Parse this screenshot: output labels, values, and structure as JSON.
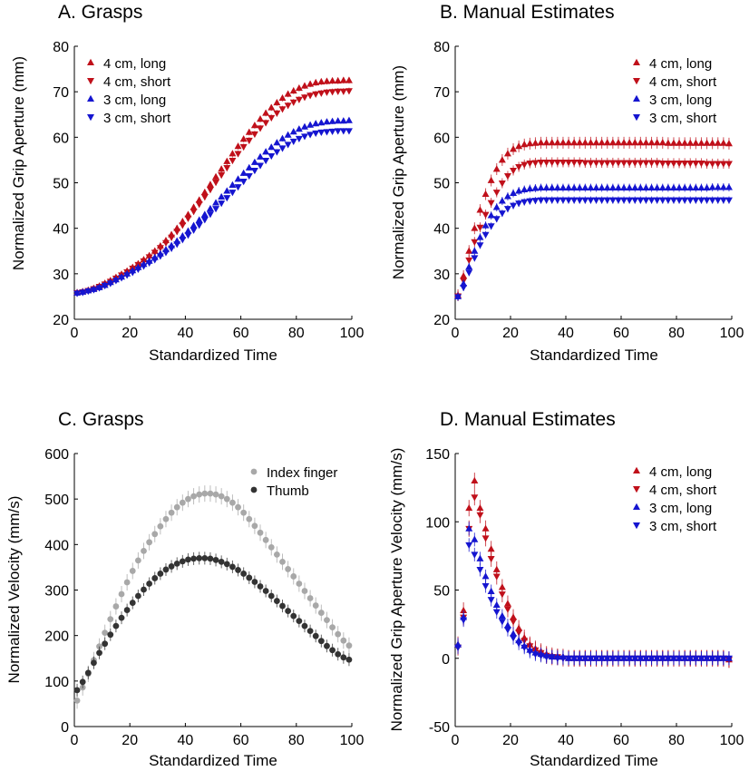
{
  "colors": {
    "red": "#c0101a",
    "blue": "#1515d0",
    "light_gray": "#a8a8a8",
    "dark_gray": "#333333"
  },
  "chart_data": [
    {
      "panel": "A",
      "type": "scatter",
      "title": "A. Grasps",
      "xlabel": "Standardized Time",
      "ylabel": "Normalized Grip Aperture (mm)",
      "xlim": [
        0,
        100
      ],
      "ylim": [
        20,
        80
      ],
      "xticks": [
        0,
        20,
        40,
        60,
        80,
        100
      ],
      "yticks": [
        20,
        30,
        40,
        50,
        60,
        70,
        80
      ],
      "legend_position": "top-left",
      "x": [
        1,
        3,
        5,
        7,
        9,
        11,
        13,
        15,
        17,
        19,
        21,
        23,
        25,
        27,
        29,
        31,
        33,
        35,
        37,
        39,
        41,
        43,
        45,
        47,
        49,
        51,
        53,
        55,
        57,
        59,
        61,
        63,
        65,
        67,
        69,
        71,
        73,
        75,
        77,
        79,
        81,
        83,
        85,
        87,
        89,
        91,
        93,
        95,
        97,
        99
      ],
      "series": [
        {
          "name": "4 cm, long",
          "color": "red",
          "marker": "triangle-up",
          "values": [
            25.9,
            26.1,
            26.4,
            26.8,
            27.3,
            27.9,
            28.5,
            29.2,
            29.9,
            30.6,
            31.4,
            32.2,
            33.1,
            34.0,
            35.0,
            36.1,
            37.3,
            38.6,
            40.0,
            41.5,
            43.0,
            44.6,
            46.2,
            47.9,
            49.6,
            51.3,
            53.0,
            54.7,
            56.4,
            58.0,
            59.6,
            61.1,
            62.6,
            64.0,
            65.3,
            66.5,
            67.6,
            68.6,
            69.5,
            70.2,
            70.8,
            71.3,
            71.7,
            72.0,
            72.2,
            72.3,
            72.4,
            72.4,
            72.5,
            72.5
          ],
          "errors": 0.7
        },
        {
          "name": "4 cm, short",
          "color": "red",
          "marker": "triangle-down",
          "values": [
            25.8,
            26.0,
            26.3,
            26.7,
            27.2,
            27.7,
            28.3,
            29.0,
            29.7,
            30.4,
            31.2,
            32.0,
            32.8,
            33.7,
            34.7,
            35.7,
            36.8,
            38.0,
            39.3,
            40.7,
            42.2,
            43.7,
            45.3,
            46.9,
            48.5,
            50.1,
            51.7,
            53.3,
            54.9,
            56.4,
            57.9,
            59.3,
            60.7,
            62.0,
            63.2,
            64.3,
            65.3,
            66.2,
            67.0,
            67.7,
            68.3,
            68.8,
            69.2,
            69.5,
            69.7,
            69.9,
            70.0,
            70.1,
            70.1,
            70.2
          ],
          "errors": 0.7
        },
        {
          "name": "3 cm, long",
          "color": "blue",
          "marker": "triangle-up",
          "values": [
            25.8,
            26.0,
            26.3,
            26.6,
            27.0,
            27.5,
            28.1,
            28.7,
            29.3,
            30.0,
            30.7,
            31.4,
            32.1,
            32.8,
            33.6,
            34.4,
            35.3,
            36.2,
            37.2,
            38.3,
            39.4,
            40.6,
            41.8,
            43.0,
            44.3,
            45.6,
            46.9,
            48.2,
            49.5,
            50.8,
            52.1,
            53.3,
            54.5,
            55.7,
            56.8,
            57.8,
            58.8,
            59.7,
            60.5,
            61.2,
            61.8,
            62.3,
            62.7,
            63.0,
            63.2,
            63.4,
            63.5,
            63.6,
            63.6,
            63.7
          ],
          "errors": 0.6
        },
        {
          "name": "3 cm, short",
          "color": "blue",
          "marker": "triangle-down",
          "values": [
            25.7,
            25.9,
            26.2,
            26.5,
            26.9,
            27.4,
            27.9,
            28.5,
            29.1,
            29.7,
            30.3,
            31.0,
            31.7,
            32.4,
            33.1,
            33.9,
            34.7,
            35.6,
            36.5,
            37.5,
            38.5,
            39.6,
            40.7,
            41.9,
            43.1,
            44.3,
            45.5,
            46.7,
            47.9,
            49.1,
            50.3,
            51.5,
            52.7,
            53.8,
            54.9,
            55.9,
            56.8,
            57.6,
            58.4,
            59.1,
            59.7,
            60.2,
            60.6,
            60.9,
            61.1,
            61.2,
            61.3,
            61.4,
            61.4,
            61.4
          ],
          "errors": 0.6
        }
      ]
    },
    {
      "panel": "B",
      "type": "scatter",
      "title": "B. Manual Estimates",
      "xlabel": "Standardized Time",
      "ylabel": "Normalized Grip Aperture (mm)",
      "xlim": [
        0,
        100
      ],
      "ylim": [
        20,
        80
      ],
      "xticks": [
        0,
        20,
        40,
        60,
        80,
        100
      ],
      "yticks": [
        20,
        30,
        40,
        50,
        60,
        70,
        80
      ],
      "legend_position": "top-right",
      "x": [
        1,
        3,
        5,
        7,
        9,
        11,
        13,
        15,
        17,
        19,
        21,
        23,
        25,
        27,
        29,
        31,
        33,
        35,
        37,
        39,
        41,
        43,
        45,
        47,
        49,
        51,
        53,
        55,
        57,
        59,
        61,
        63,
        65,
        67,
        69,
        71,
        73,
        75,
        77,
        79,
        81,
        83,
        85,
        87,
        89,
        91,
        93,
        95,
        97,
        99
      ],
      "series": [
        {
          "name": "4 cm, long",
          "color": "red",
          "marker": "triangle-up",
          "values": [
            25.3,
            29.5,
            35.0,
            40.0,
            44.0,
            47.5,
            50.5,
            53.0,
            55.0,
            56.4,
            57.4,
            58.0,
            58.4,
            58.6,
            58.7,
            58.8,
            58.8,
            58.8,
            58.8,
            58.8,
            58.8,
            58.8,
            58.8,
            58.8,
            58.8,
            58.8,
            58.8,
            58.8,
            58.8,
            58.8,
            58.8,
            58.8,
            58.8,
            58.8,
            58.8,
            58.8,
            58.8,
            58.8,
            58.7,
            58.7,
            58.7,
            58.7,
            58.7,
            58.7,
            58.7,
            58.7,
            58.7,
            58.7,
            58.7,
            58.6
          ],
          "errors": 1.3
        },
        {
          "name": "4 cm, short",
          "color": "red",
          "marker": "triangle-down",
          "values": [
            25.1,
            28.5,
            33.0,
            37.0,
            40.2,
            43.0,
            45.6,
            47.9,
            49.9,
            51.5,
            52.7,
            53.5,
            54.0,
            54.3,
            54.4,
            54.5,
            54.5,
            54.5,
            54.5,
            54.5,
            54.5,
            54.5,
            54.5,
            54.4,
            54.4,
            54.4,
            54.4,
            54.4,
            54.4,
            54.4,
            54.4,
            54.4,
            54.4,
            54.4,
            54.4,
            54.4,
            54.4,
            54.3,
            54.3,
            54.3,
            54.3,
            54.3,
            54.3,
            54.3,
            54.3,
            54.2,
            54.2,
            54.2,
            54.2,
            54.2
          ],
          "errors": 1.1
        },
        {
          "name": "3 cm, long",
          "color": "blue",
          "marker": "triangle-up",
          "values": [
            25.0,
            27.8,
            31.5,
            35.0,
            38.0,
            40.6,
            42.8,
            44.6,
            46.0,
            47.0,
            47.7,
            48.2,
            48.5,
            48.7,
            48.8,
            48.9,
            48.9,
            48.9,
            48.9,
            48.9,
            48.9,
            48.9,
            48.9,
            48.9,
            48.9,
            48.9,
            48.9,
            48.9,
            48.9,
            48.9,
            48.9,
            48.9,
            48.9,
            48.9,
            48.9,
            48.9,
            48.9,
            48.9,
            48.9,
            48.9,
            48.9,
            48.9,
            48.9,
            48.9,
            48.9,
            48.9,
            49.0,
            49.0,
            49.0,
            49.0
          ],
          "errors": 0.9
        },
        {
          "name": "3 cm, short",
          "color": "blue",
          "marker": "triangle-down",
          "values": [
            24.9,
            27.0,
            30.3,
            33.5,
            36.3,
            38.6,
            40.5,
            42.1,
            43.3,
            44.3,
            45.0,
            45.5,
            45.8,
            46.0,
            46.1,
            46.2,
            46.2,
            46.2,
            46.2,
            46.2,
            46.2,
            46.2,
            46.2,
            46.2,
            46.2,
            46.2,
            46.2,
            46.2,
            46.2,
            46.2,
            46.2,
            46.2,
            46.2,
            46.2,
            46.2,
            46.2,
            46.2,
            46.2,
            46.2,
            46.2,
            46.2,
            46.2,
            46.2,
            46.2,
            46.2,
            46.2,
            46.2,
            46.2,
            46.2,
            46.2
          ],
          "errors": 0.8
        }
      ]
    },
    {
      "panel": "C",
      "type": "scatter",
      "title": "C. Grasps",
      "xlabel": "Standardized Time",
      "ylabel": "Normalized Velocity (mm/s)",
      "xlim": [
        0,
        100
      ],
      "ylim": [
        0,
        600
      ],
      "xticks": [
        0,
        20,
        40,
        60,
        80,
        100
      ],
      "yticks": [
        0,
        100,
        200,
        300,
        400,
        500,
        600
      ],
      "legend_position": "top-right",
      "x": [
        1,
        3,
        5,
        7,
        9,
        11,
        13,
        15,
        17,
        19,
        21,
        23,
        25,
        27,
        29,
        31,
        33,
        35,
        37,
        39,
        41,
        43,
        45,
        47,
        49,
        51,
        53,
        55,
        57,
        59,
        61,
        63,
        65,
        67,
        69,
        71,
        73,
        75,
        77,
        79,
        81,
        83,
        85,
        87,
        89,
        91,
        93,
        95,
        97,
        99
      ],
      "series": [
        {
          "name": "Index finger",
          "color": "light_gray",
          "marker": "circle",
          "values": [
            57,
            86,
            116,
            146,
            176,
            206,
            236,
            264,
            291,
            317,
            342,
            365,
            386,
            405,
            423,
            440,
            456,
            470,
            482,
            492,
            500,
            506,
            510,
            512,
            512,
            510,
            506,
            500,
            492,
            482,
            470,
            456,
            441,
            426,
            410,
            394,
            378,
            362,
            346,
            330,
            314,
            298,
            282,
            266,
            250,
            234,
            218,
            203,
            189,
            178
          ],
          "errors": 18
        },
        {
          "name": "Thumb",
          "color": "dark_gray",
          "marker": "circle",
          "values": [
            80,
            98,
            118,
            140,
            162,
            182,
            202,
            221,
            239,
            256,
            272,
            287,
            301,
            314,
            326,
            336,
            345,
            352,
            358,
            363,
            367,
            369,
            370,
            370,
            369,
            366,
            362,
            357,
            351,
            344,
            336,
            327,
            318,
            308,
            298,
            287,
            276,
            265,
            254,
            243,
            232,
            221,
            210,
            199,
            188,
            177,
            168,
            159,
            152,
            147
          ],
          "errors": 14
        }
      ]
    },
    {
      "panel": "D",
      "type": "scatter",
      "title": "D. Manual Estimates",
      "xlabel": "Standardized Time",
      "ylabel": "Normalized Grip Aperture Velocity (mm/s)",
      "xlim": [
        0,
        100
      ],
      "ylim": [
        -50,
        150
      ],
      "xticks": [
        0,
        20,
        40,
        60,
        80,
        100
      ],
      "yticks": [
        -50,
        0,
        50,
        100,
        150
      ],
      "legend_position": "top-right",
      "x": [
        1,
        3,
        5,
        7,
        9,
        11,
        13,
        15,
        17,
        19,
        21,
        23,
        25,
        27,
        29,
        31,
        33,
        35,
        37,
        39,
        41,
        43,
        45,
        47,
        49,
        51,
        53,
        55,
        57,
        59,
        61,
        63,
        65,
        67,
        69,
        71,
        73,
        75,
        77,
        79,
        81,
        83,
        85,
        87,
        89,
        91,
        93,
        95,
        97,
        99
      ],
      "series": [
        {
          "name": "4 cm, long",
          "color": "red",
          "marker": "triangle-up",
          "values": [
            10,
            35,
            110,
            130,
            110,
            95,
            80,
            65,
            52,
            40,
            30,
            22,
            15,
            10,
            7,
            5,
            3,
            2,
            1,
            1,
            0,
            0,
            0,
            0,
            0,
            0,
            0,
            0,
            0,
            0,
            0,
            0,
            0,
            0,
            0,
            0,
            0,
            0,
            0,
            0,
            0,
            0,
            0,
            0,
            0,
            0,
            0,
            0,
            0,
            -1
          ],
          "errors": 6
        },
        {
          "name": "4 cm, short",
          "color": "red",
          "marker": "triangle-down",
          "values": [
            8,
            30,
            95,
            118,
            105,
            88,
            73,
            60,
            47,
            36,
            27,
            19,
            13,
            9,
            6,
            4,
            2,
            1,
            1,
            0,
            0,
            0,
            0,
            0,
            0,
            0,
            0,
            0,
            0,
            0,
            0,
            0,
            0,
            0,
            0,
            0,
            0,
            0,
            0,
            0,
            0,
            0,
            0,
            0,
            0,
            0,
            0,
            0,
            0,
            -1
          ],
          "errors": 6
        },
        {
          "name": "3 cm, long",
          "color": "blue",
          "marker": "triangle-up",
          "values": [
            10,
            30,
            95,
            87,
            73,
            60,
            49,
            39,
            31,
            24,
            18,
            13,
            9,
            6,
            4,
            3,
            2,
            1,
            1,
            1,
            0,
            0,
            0,
            0,
            0,
            0,
            0,
            0,
            0,
            0,
            0,
            0,
            0,
            0,
            0,
            0,
            0,
            0,
            0,
            0,
            0,
            0,
            0,
            0,
            0,
            0,
            0,
            0,
            0,
            0
          ],
          "errors": 5
        },
        {
          "name": "3 cm, short",
          "color": "blue",
          "marker": "triangle-down",
          "values": [
            8,
            28,
            83,
            76,
            65,
            53,
            43,
            34,
            27,
            21,
            15,
            11,
            8,
            5,
            3,
            2,
            1,
            1,
            0,
            0,
            0,
            0,
            0,
            0,
            0,
            0,
            0,
            0,
            0,
            0,
            0,
            0,
            0,
            0,
            0,
            0,
            0,
            0,
            0,
            0,
            0,
            0,
            0,
            0,
            0,
            0,
            0,
            0,
            0,
            0
          ],
          "errors": 5
        }
      ]
    }
  ]
}
